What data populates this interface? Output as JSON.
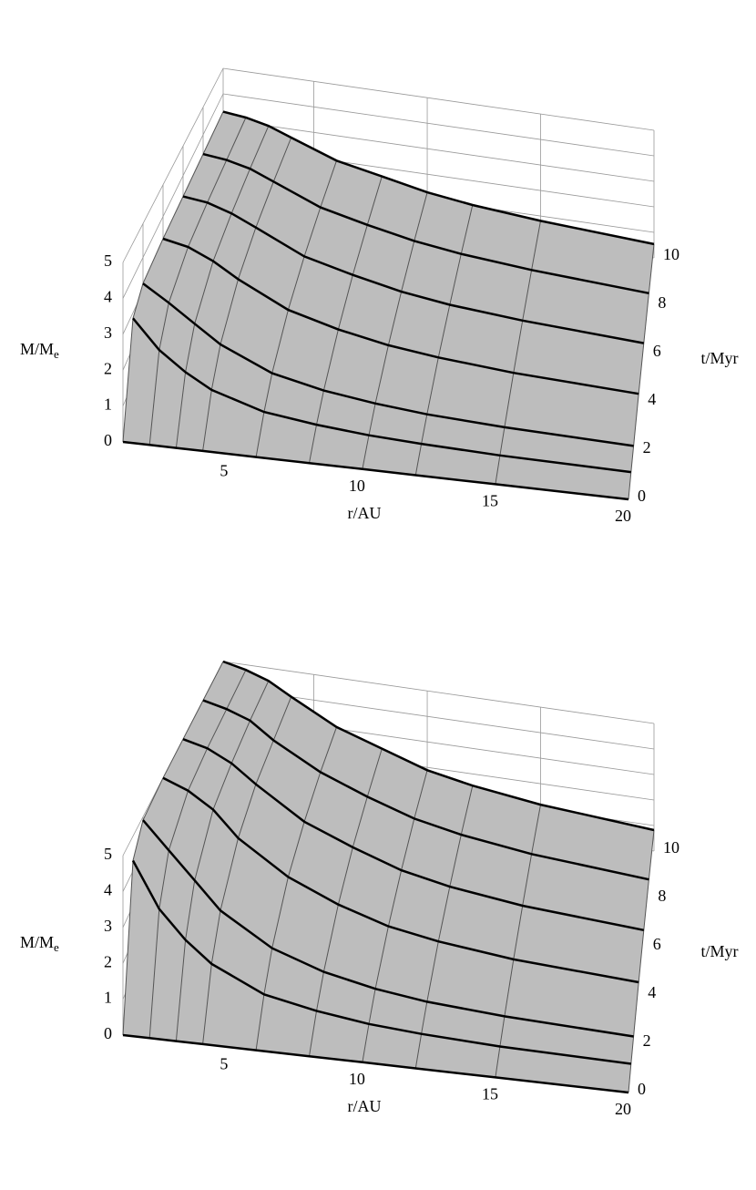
{
  "chart_data": [
    {
      "type": "surface",
      "x_label": "r/AU",
      "y_label": "t/Myr",
      "z_label": "M/M",
      "z_label_sub": "e",
      "r": [
        1,
        2,
        3,
        4,
        6,
        8,
        10,
        12,
        15,
        20
      ],
      "t": [
        0,
        1,
        2,
        4,
        6,
        8,
        10
      ],
      "z": [
        [
          0,
          0,
          0,
          0,
          0,
          0,
          0,
          0,
          0,
          0
        ],
        [
          2.84,
          2.02,
          1.47,
          1.05,
          0.59,
          0.4,
          0.27,
          0.2,
          0.13,
          0.09
        ],
        [
          3.23,
          2.75,
          2.22,
          1.7,
          1.03,
          0.7,
          0.5,
          0.36,
          0.25,
          0.15
        ],
        [
          3.3,
          3.14,
          2.79,
          2.32,
          1.55,
          1.13,
          0.83,
          0.64,
          0.45,
          0.28
        ],
        [
          3.3,
          3.2,
          2.94,
          2.57,
          1.81,
          1.4,
          1.05,
          0.82,
          0.61,
          0.38
        ],
        [
          3.3,
          3.2,
          3.0,
          2.65,
          1.95,
          1.55,
          1.2,
          0.96,
          0.73,
          0.47
        ],
        [
          3.3,
          3.2,
          3.0,
          2.67,
          2.02,
          1.66,
          1.29,
          1.05,
          0.81,
          0.54
        ]
      ],
      "xlim": [
        1,
        20
      ],
      "xticks": [
        5,
        10,
        15,
        20
      ],
      "ylim": [
        0,
        10
      ],
      "yticks": [
        0,
        2,
        4,
        6,
        8,
        10
      ],
      "zlim": [
        0,
        5
      ],
      "zticks": [
        0,
        1,
        2,
        3,
        4,
        5
      ],
      "surface_color": "#bdbdbd",
      "line_color": "#000000",
      "grid": true
    },
    {
      "type": "surface",
      "x_label": "r/AU",
      "y_label": "t/Myr",
      "z_label": "M/M",
      "z_label_sub": "e",
      "r": [
        1,
        2,
        3,
        4,
        6,
        8,
        10,
        12,
        15,
        20
      ],
      "t": [
        0,
        1,
        2,
        4,
        6,
        8,
        10
      ],
      "z": [
        [
          0,
          0,
          0,
          0,
          0,
          0,
          0,
          0,
          0,
          0
        ],
        [
          4.3,
          3.0,
          2.2,
          1.6,
          0.9,
          0.6,
          0.4,
          0.29,
          0.19,
          0.13
        ],
        [
          4.9,
          4.1,
          3.3,
          2.5,
          1.57,
          1.05,
          0.73,
          0.53,
          0.37,
          0.23
        ],
        [
          5,
          4.7,
          4.2,
          3.4,
          2.37,
          1.7,
          1.21,
          0.93,
          0.66,
          0.43
        ],
        [
          5,
          4.8,
          4.4,
          3.8,
          2.75,
          2.1,
          1.54,
          1.2,
          0.88,
          0.59
        ],
        [
          5,
          4.8,
          4.5,
          3.9,
          2.98,
          2.32,
          1.76,
          1.41,
          1.06,
          0.72
        ],
        [
          5,
          4.8,
          4.5,
          4.0,
          3.07,
          2.48,
          1.89,
          1.54,
          1.18,
          0.82
        ]
      ],
      "xlim": [
        1,
        20
      ],
      "xticks": [
        5,
        10,
        15,
        20
      ],
      "ylim": [
        0,
        10
      ],
      "yticks": [
        0,
        2,
        4,
        6,
        8,
        10
      ],
      "zlim": [
        0,
        5
      ],
      "zticks": [
        0,
        1,
        2,
        3,
        4,
        5
      ],
      "surface_color": "#bdbdbd",
      "line_color": "#000000",
      "grid": true
    }
  ]
}
